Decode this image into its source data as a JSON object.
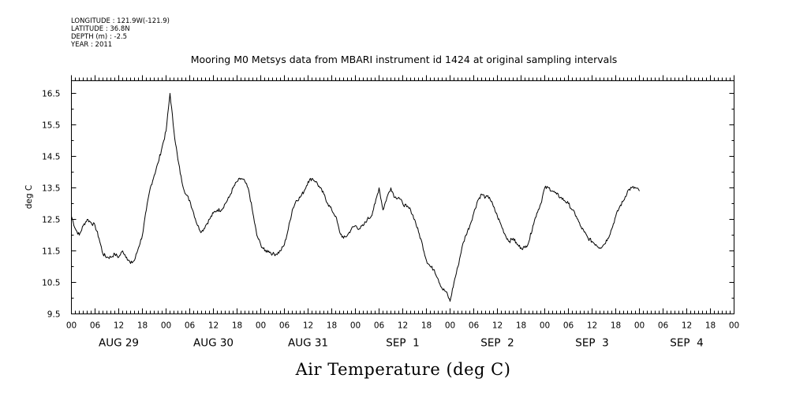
{
  "metadata": {
    "longitude": "LONGITUDE : 121.9W(-121.9)",
    "latitude": "LATITUDE : 36.8N",
    "depth": "DEPTH (m) : -2.5",
    "year": "YEAR : 2011"
  },
  "chart_data": {
    "type": "line",
    "title": "Mooring M0 Metsys data from MBARI instrument id 1424 at original sampling intervals",
    "xlabel": "Air Temperature (deg C)",
    "ylabel": "deg C",
    "ylim": [
      9.5,
      16.9
    ],
    "y_ticks": [
      "9.5",
      "10.5",
      "11.5",
      "12.5",
      "13.5",
      "14.5",
      "15.5",
      "16.5"
    ],
    "x_unit": "hours since 2011-08-29 00:00",
    "xlim": [
      0,
      168
    ],
    "hour_ticks": [
      "00",
      "06",
      "12",
      "18",
      "00",
      "06",
      "12",
      "18",
      "00",
      "06",
      "12",
      "18",
      "00",
      "06",
      "12",
      "18",
      "00",
      "06",
      "12",
      "18",
      "00",
      "06",
      "12",
      "18",
      "00",
      "06",
      "12",
      "18",
      "00"
    ],
    "day_labels": [
      "AUG 29",
      "AUG 30",
      "AUG 31",
      "SEP  1",
      "SEP  2",
      "SEP  3",
      "SEP  4"
    ],
    "grid": false,
    "series": [
      {
        "color": "#000000",
        "points": [
          [
            0,
            12.6
          ],
          [
            1,
            12.2
          ],
          [
            2,
            12.0
          ],
          [
            3,
            12.3
          ],
          [
            4,
            12.5
          ],
          [
            5,
            12.4
          ],
          [
            6,
            12.3
          ],
          [
            7,
            11.9
          ],
          [
            8,
            11.4
          ],
          [
            9,
            11.3
          ],
          [
            10,
            11.3
          ],
          [
            11,
            11.4
          ],
          [
            12,
            11.3
          ],
          [
            13,
            11.5
          ],
          [
            14,
            11.3
          ],
          [
            15,
            11.1
          ],
          [
            16,
            11.2
          ],
          [
            17,
            11.6
          ],
          [
            18,
            12.0
          ],
          [
            19,
            12.8
          ],
          [
            20,
            13.5
          ],
          [
            21,
            13.9
          ],
          [
            22,
            14.3
          ],
          [
            23,
            14.8
          ],
          [
            24,
            15.3
          ],
          [
            25,
            16.5
          ],
          [
            26,
            15.3
          ],
          [
            27,
            14.4
          ],
          [
            28,
            13.7
          ],
          [
            29,
            13.3
          ],
          [
            30,
            13.1
          ],
          [
            31,
            12.7
          ],
          [
            32,
            12.3
          ],
          [
            33,
            12.1
          ],
          [
            34,
            12.3
          ],
          [
            35,
            12.5
          ],
          [
            36,
            12.7
          ],
          [
            37,
            12.8
          ],
          [
            38,
            12.8
          ],
          [
            39,
            13.0
          ],
          [
            40,
            13.2
          ],
          [
            41,
            13.5
          ],
          [
            42,
            13.7
          ],
          [
            43,
            13.8
          ],
          [
            44,
            13.7
          ],
          [
            45,
            13.4
          ],
          [
            46,
            12.7
          ],
          [
            47,
            12.0
          ],
          [
            48,
            11.7
          ],
          [
            49,
            11.5
          ],
          [
            50,
            11.5
          ],
          [
            51,
            11.4
          ],
          [
            52,
            11.4
          ],
          [
            53,
            11.5
          ],
          [
            54,
            11.7
          ],
          [
            55,
            12.2
          ],
          [
            56,
            12.8
          ],
          [
            57,
            13.1
          ],
          [
            58,
            13.2
          ],
          [
            59,
            13.4
          ],
          [
            60,
            13.7
          ],
          [
            61,
            13.8
          ],
          [
            62,
            13.7
          ],
          [
            63,
            13.5
          ],
          [
            64,
            13.3
          ],
          [
            65,
            13.0
          ],
          [
            66,
            12.8
          ],
          [
            67,
            12.6
          ],
          [
            68,
            12.1
          ],
          [
            69,
            11.9
          ],
          [
            70,
            12.0
          ],
          [
            71,
            12.2
          ],
          [
            72,
            12.3
          ],
          [
            73,
            12.2
          ],
          [
            74,
            12.3
          ],
          [
            75,
            12.5
          ],
          [
            76,
            12.6
          ],
          [
            77,
            13.0
          ],
          [
            78,
            13.5
          ],
          [
            79,
            12.8
          ],
          [
            80,
            13.2
          ],
          [
            81,
            13.5
          ],
          [
            82,
            13.2
          ],
          [
            83,
            13.2
          ],
          [
            84,
            13.0
          ],
          [
            85,
            12.9
          ],
          [
            86,
            12.8
          ],
          [
            87,
            12.5
          ],
          [
            88,
            12.1
          ],
          [
            89,
            11.7
          ],
          [
            90,
            11.2
          ],
          [
            91,
            11.0
          ],
          [
            92,
            10.9
          ],
          [
            93,
            10.6
          ],
          [
            94,
            10.3
          ],
          [
            95,
            10.2
          ],
          [
            96,
            9.9
          ],
          [
            97,
            10.5
          ],
          [
            98,
            11.0
          ],
          [
            99,
            11.6
          ],
          [
            100,
            12.0
          ],
          [
            101,
            12.3
          ],
          [
            102,
            12.7
          ],
          [
            103,
            13.1
          ],
          [
            104,
            13.3
          ],
          [
            105,
            13.2
          ],
          [
            106,
            13.2
          ],
          [
            107,
            12.9
          ],
          [
            108,
            12.6
          ],
          [
            109,
            12.3
          ],
          [
            110,
            12.0
          ],
          [
            111,
            11.8
          ],
          [
            112,
            11.9
          ],
          [
            113,
            11.7
          ],
          [
            114,
            11.6
          ],
          [
            115,
            11.6
          ],
          [
            116,
            11.8
          ],
          [
            117,
            12.3
          ],
          [
            118,
            12.7
          ],
          [
            119,
            13.0
          ],
          [
            120,
            13.5
          ],
          [
            121,
            13.5
          ],
          [
            122,
            13.4
          ],
          [
            123,
            13.3
          ],
          [
            124,
            13.2
          ],
          [
            125,
            13.1
          ],
          [
            126,
            13.0
          ],
          [
            127,
            12.8
          ],
          [
            128,
            12.6
          ],
          [
            129,
            12.3
          ],
          [
            130,
            12.1
          ],
          [
            131,
            11.9
          ],
          [
            132,
            11.8
          ],
          [
            133,
            11.7
          ],
          [
            134,
            11.6
          ],
          [
            135,
            11.7
          ],
          [
            136,
            11.9
          ],
          [
            137,
            12.2
          ],
          [
            138,
            12.6
          ],
          [
            139,
            12.9
          ],
          [
            140,
            13.1
          ],
          [
            141,
            13.4
          ],
          [
            142,
            13.5
          ],
          [
            143,
            13.5
          ],
          [
            144,
            13.4
          ]
        ]
      }
    ]
  }
}
